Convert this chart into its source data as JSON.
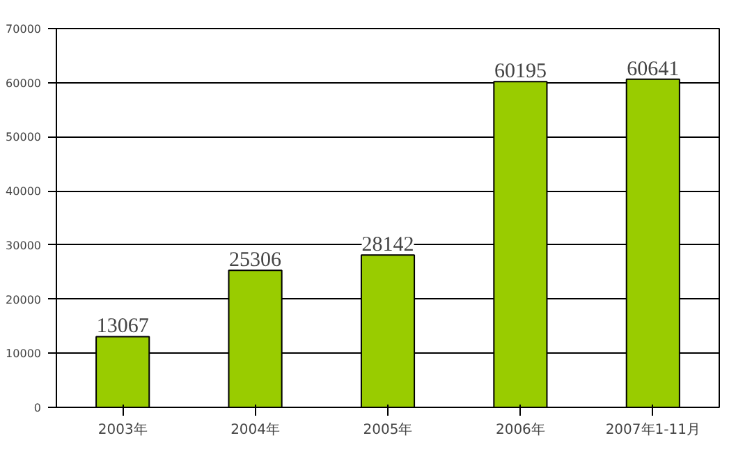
{
  "chart_data": {
    "type": "bar",
    "categories": [
      "2003年",
      "2004年",
      "2005年",
      "2006年",
      "2007年1-11月"
    ],
    "values": [
      13067,
      25306,
      28142,
      60195,
      60641
    ],
    "color": "#99cc00",
    "ylim": [
      0,
      70000
    ],
    "yticks": [
      0,
      10000,
      20000,
      30000,
      40000,
      50000,
      60000,
      70000
    ],
    "grid": "y",
    "data_labels": true
  }
}
